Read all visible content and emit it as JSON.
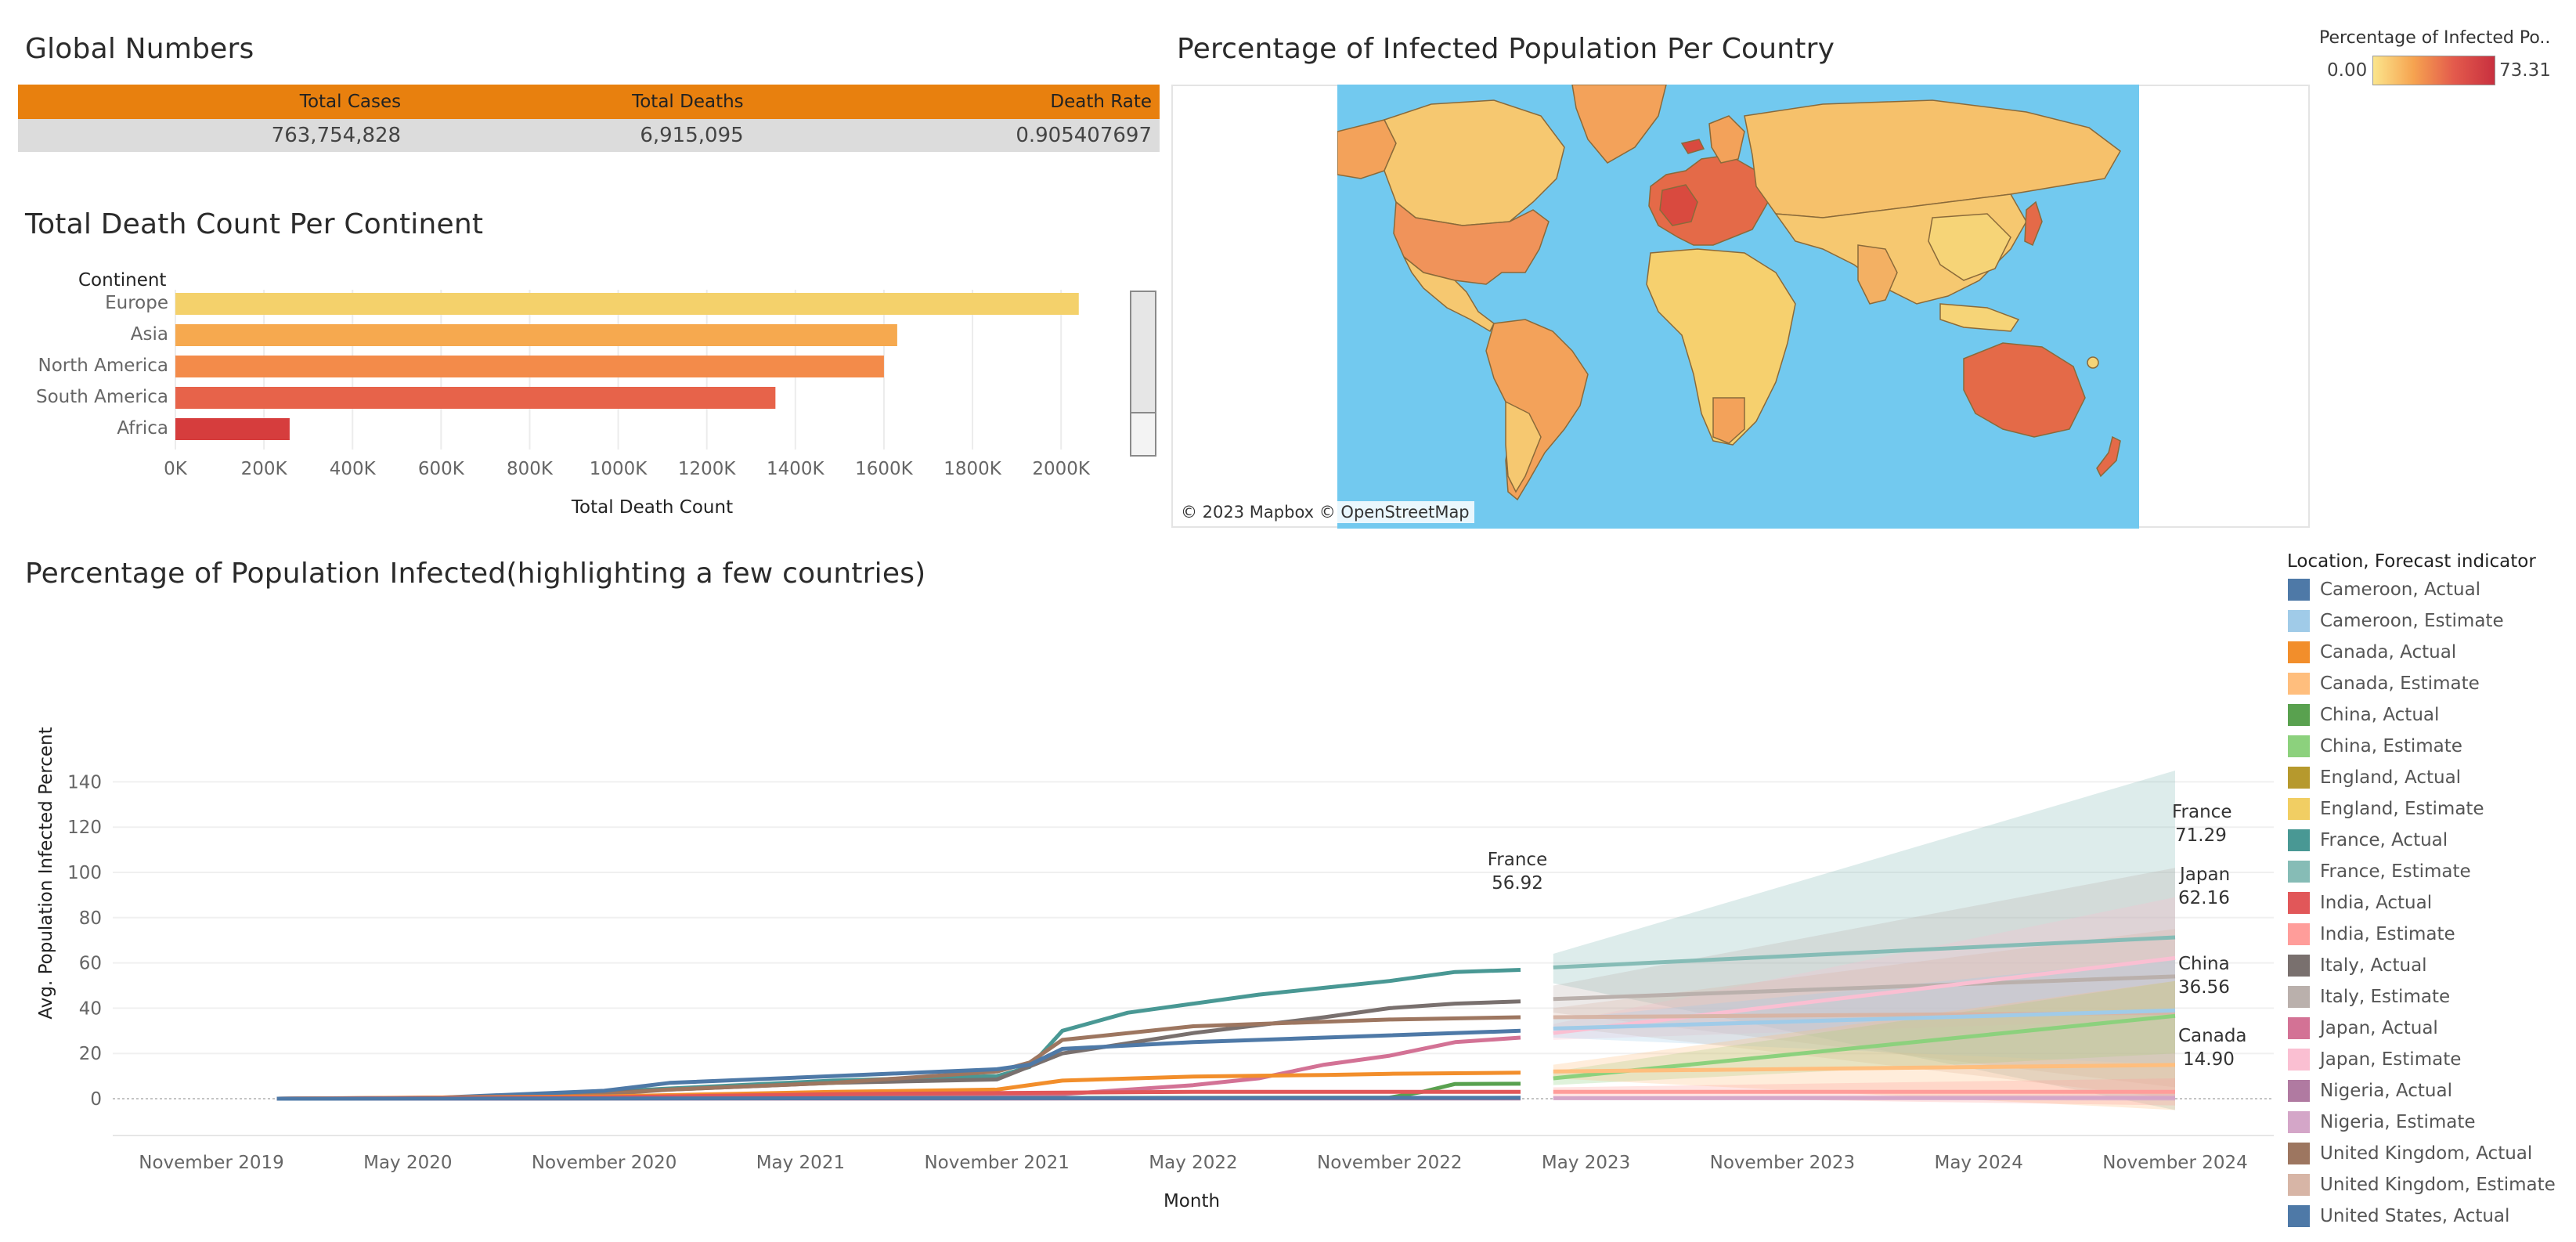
{
  "global_numbers": {
    "title": "Global Numbers",
    "headers": [
      "Total Cases",
      "Total Deaths",
      "Death Rate"
    ],
    "values": [
      "763,754,828",
      "6,915,095",
      "0.905407697"
    ]
  },
  "continent_chart": {
    "title": "Total Death Count Per Continent",
    "category_header": "Continent",
    "xlabel": "Total Death Count",
    "tick_labels": [
      "0K",
      "200K",
      "400K",
      "600K",
      "800K",
      "1000K",
      "1200K",
      "1400K",
      "1600K",
      "1800K",
      "2000K"
    ]
  },
  "map": {
    "title": "Percentage of Infected Population Per Country",
    "legend_title": "Percentage of Infected Po..",
    "legend_min": "0.00",
    "legend_max": "73.31",
    "attribution": "© 2023 Mapbox © OpenStreetMap",
    "colors": {
      "ocean": "#72c9ef",
      "land_low": "#f6d477",
      "land_mid": "#f3a25a",
      "land_high": "#d94a3f",
      "borders": "#8a6a3a"
    }
  },
  "infected_chart": {
    "title": "Percentage of Population Infected(highlighting a few countries)",
    "ylabel": "Avg. Population Infected Percent",
    "xlabel": "Month",
    "x_tick_labels": [
      "November 2019",
      "May 2020",
      "November 2020",
      "May 2021",
      "November 2021",
      "May 2022",
      "November 2022",
      "May 2023",
      "November 2023",
      "May 2024",
      "November 2024"
    ],
    "y_tick_labels": [
      "0",
      "20",
      "40",
      "60",
      "80",
      "100",
      "120",
      "140"
    ],
    "marks": [
      {
        "country": "France",
        "value": "56.92"
      },
      {
        "country": "France",
        "value": "71.29"
      },
      {
        "country": "Japan",
        "value": "62.16"
      },
      {
        "country": "China",
        "value": "36.56"
      },
      {
        "country": "Canada",
        "value": "14.90"
      }
    ]
  },
  "legend": {
    "title": "Location, Forecast indicator",
    "items": [
      {
        "label": "Cameroon, Actual",
        "color": "#4e79a7"
      },
      {
        "label": "Cameroon, Estimate",
        "color": "#a0cbe8"
      },
      {
        "label": "Canada, Actual",
        "color": "#f28e2b"
      },
      {
        "label": "Canada, Estimate",
        "color": "#ffbe7d"
      },
      {
        "label": "China, Actual",
        "color": "#59a14f"
      },
      {
        "label": "China, Estimate",
        "color": "#8cd17d"
      },
      {
        "label": "England, Actual",
        "color": "#b6992d"
      },
      {
        "label": "England, Estimate",
        "color": "#f1ce63"
      },
      {
        "label": "France, Actual",
        "color": "#499894"
      },
      {
        "label": "France, Estimate",
        "color": "#86bcb6"
      },
      {
        "label": "India, Actual",
        "color": "#e15759"
      },
      {
        "label": "India, Estimate",
        "color": "#ff9d9a"
      },
      {
        "label": "Italy, Actual",
        "color": "#79706e"
      },
      {
        "label": "Italy, Estimate",
        "color": "#bab0ac"
      },
      {
        "label": "Japan, Actual",
        "color": "#d37295"
      },
      {
        "label": "Japan, Estimate",
        "color": "#fabfd2"
      },
      {
        "label": "Nigeria, Actual",
        "color": "#b07aa1"
      },
      {
        "label": "Nigeria, Estimate",
        "color": "#d4a6c8"
      },
      {
        "label": "United Kingdom, Actual",
        "color": "#9d7660"
      },
      {
        "label": "United Kingdom, Estimate",
        "color": "#d7b5a6"
      },
      {
        "label": "United States, Actual",
        "color": "#4e79a7"
      }
    ]
  },
  "chart_data": [
    {
      "type": "bar",
      "orientation": "horizontal",
      "title": "Total Death Count Per Continent",
      "categories": [
        "Europe",
        "Asia",
        "North America",
        "South America",
        "Africa"
      ],
      "values": [
        2040000,
        1630000,
        1600000,
        1355000,
        258000
      ],
      "colors": [
        "#f4d16b",
        "#f6a94f",
        "#f38b4a",
        "#e7634a",
        "#d63d3d"
      ],
      "xlabel": "Total Death Count",
      "xlim": [
        0,
        2150000
      ],
      "grid": true
    },
    {
      "type": "line",
      "title": "Percentage of Population Infected(highlighting a few countries)",
      "xlabel": "Month",
      "ylabel": "Avg. Population Infected Percent",
      "ylim": [
        -5,
        145
      ],
      "grid": true,
      "series": [
        {
          "name": "France, Actual",
          "color": "#499894",
          "x": [
            "2020-01",
            "2020-06",
            "2020-11",
            "2021-01",
            "2021-06",
            "2021-11",
            "2021-12",
            "2022-01",
            "2022-03",
            "2022-05",
            "2022-07",
            "2022-09",
            "2022-11",
            "2023-01",
            "2023-03"
          ],
          "y": [
            0,
            0.3,
            3,
            4.5,
            8,
            10,
            14,
            30,
            38,
            42,
            46,
            49,
            52,
            56,
            56.92
          ]
        },
        {
          "name": "Italy, Actual",
          "color": "#79706e",
          "x": [
            "2020-01",
            "2020-06",
            "2020-11",
            "2021-01",
            "2021-06",
            "2021-11",
            "2022-01",
            "2022-05",
            "2022-09",
            "2022-11",
            "2023-01",
            "2023-03"
          ],
          "y": [
            0,
            0.4,
            2.5,
            4,
            7,
            8.5,
            20,
            29,
            36,
            40,
            42,
            43
          ]
        },
        {
          "name": "United Kingdom, Actual",
          "color": "#9d7660",
          "x": [
            "2020-01",
            "2020-06",
            "2020-11",
            "2021-01",
            "2021-06",
            "2021-11",
            "2021-12",
            "2022-01",
            "2022-05",
            "2022-09",
            "2022-11",
            "2023-03"
          ],
          "y": [
            0,
            0.3,
            2,
            4,
            7,
            12,
            16,
            26,
            32,
            34,
            35,
            36
          ]
        },
        {
          "name": "United States, Actual",
          "color": "#4e79a7",
          "x": [
            "2020-01",
            "2020-06",
            "2020-11",
            "2021-01",
            "2021-06",
            "2021-11",
            "2021-12",
            "2022-01",
            "2022-05",
            "2022-09",
            "2022-11",
            "2023-03"
          ],
          "y": [
            0,
            0.5,
            3.5,
            7,
            10,
            13,
            15,
            22,
            25,
            27,
            28,
            30
          ]
        },
        {
          "name": "Japan, Actual",
          "color": "#d37295",
          "x": [
            "2020-01",
            "2021-06",
            "2021-11",
            "2022-01",
            "2022-05",
            "2022-07",
            "2022-09",
            "2022-11",
            "2023-01",
            "2023-03"
          ],
          "y": [
            0,
            0.6,
            1.4,
            2,
            6,
            9,
            15,
            19,
            25,
            27
          ]
        },
        {
          "name": "Canada, Actual",
          "color": "#f28e2b",
          "x": [
            "2020-01",
            "2020-11",
            "2021-06",
            "2021-11",
            "2022-01",
            "2022-05",
            "2022-09",
            "2022-11",
            "2023-03"
          ],
          "y": [
            0,
            1,
            3,
            4,
            8,
            9.8,
            10.5,
            11,
            11.5
          ]
        },
        {
          "name": "China, Actual",
          "color": "#59a14f",
          "x": [
            "2020-01",
            "2022-11",
            "2022-12",
            "2023-01",
            "2023-03"
          ],
          "y": [
            0,
            0.5,
            3,
            6.5,
            6.6
          ]
        },
        {
          "name": "India, Actual",
          "color": "#e15759",
          "x": [
            "2020-01",
            "2020-11",
            "2021-06",
            "2021-11",
            "2022-05",
            "2023-03"
          ],
          "y": [
            0,
            0.6,
            2,
            2.5,
            3,
            3
          ]
        },
        {
          "name": "Nigeria, Actual",
          "color": "#b07aa1",
          "x": [
            "2020-01",
            "2023-03"
          ],
          "y": [
            0,
            0.1
          ]
        },
        {
          "name": "Cameroon, Actual",
          "color": "#4e79a7",
          "x": [
            "2020-01",
            "2023-03"
          ],
          "y": [
            0,
            0.4
          ]
        },
        {
          "name": "France, Estimate",
          "color": "#86bcb6",
          "x": [
            "2023-04",
            "2024-11"
          ],
          "y": [
            58,
            71.29
          ],
          "band": [
            [
              51,
              64
            ],
            [
              -5,
              145
            ]
          ]
        },
        {
          "name": "Italy, Estimate",
          "color": "#bab0ac",
          "x": [
            "2023-04",
            "2024-11"
          ],
          "y": [
            44,
            54
          ],
          "band": [
            [
              38,
              50
            ],
            [
              5,
              102
            ]
          ]
        },
        {
          "name": "Japan, Estimate",
          "color": "#fabfd2",
          "x": [
            "2023-04",
            "2024-11"
          ],
          "y": [
            29,
            62.16
          ],
          "band": [
            [
              26,
              33
            ],
            [
              35,
              89
            ]
          ]
        },
        {
          "name": "United Kingdom, Estimate",
          "color": "#d7b5a6",
          "x": [
            "2023-04",
            "2024-11"
          ],
          "y": [
            36,
            38
          ],
          "band": [
            [
              32,
              40
            ],
            [
              0,
              75
            ]
          ]
        },
        {
          "name": "Cameroon, Estimate",
          "color": "#a0cbe8",
          "x": [
            "2023-04",
            "2024-11"
          ],
          "y": [
            31,
            39
          ],
          "band": [
            [
              27,
              35
            ],
            [
              15,
              62
            ]
          ]
        },
        {
          "name": "China, Estimate",
          "color": "#8cd17d",
          "x": [
            "2023-04",
            "2024-11"
          ],
          "y": [
            9,
            36.56
          ],
          "band": [
            [
              6,
              12
            ],
            [
              20,
              52
            ]
          ]
        },
        {
          "name": "Canada, Estimate",
          "color": "#ffbe7d",
          "x": [
            "2023-04",
            "2024-11"
          ],
          "y": [
            12,
            14.9
          ],
          "band": [
            [
              9,
              15
            ],
            [
              -5,
              52
            ]
          ]
        },
        {
          "name": "India, Estimate",
          "color": "#ff9d9a",
          "x": [
            "2023-04",
            "2024-11"
          ],
          "y": [
            3,
            3
          ],
          "band": [
            [
              1,
              5
            ],
            [
              -3,
              9
            ]
          ]
        },
        {
          "name": "Nigeria, Estimate",
          "color": "#d4a6c8",
          "x": [
            "2023-04",
            "2024-11"
          ],
          "y": [
            0.2,
            0.3
          ],
          "band": [
            [
              0,
              1
            ],
            [
              -1,
              2
            ]
          ]
        }
      ]
    }
  ]
}
